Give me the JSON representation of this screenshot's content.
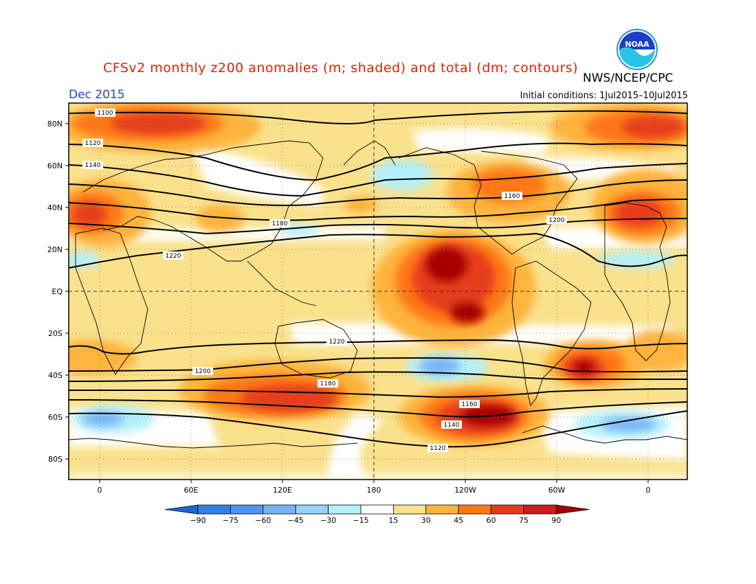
{
  "header": {
    "title": "CFSv2 monthly z200 anomalies (m; shaded) and total (dm; contours)",
    "agency": "NWS/NCEP/CPC",
    "valid_month": "Dec 2015",
    "initial_conditions": "Initial conditions: 1Jul2015–10Jul2015",
    "logo_text": "NOAA"
  },
  "map": {
    "lat_labels": [
      "80N",
      "60N",
      "40N",
      "20N",
      "EQ",
      "20S",
      "40S",
      "60S",
      "80S"
    ],
    "lon_labels": [
      "0",
      "60E",
      "120E",
      "180",
      "120W",
      "60W",
      "0"
    ]
  },
  "legend": {
    "labels": [
      "−90",
      "−75",
      "−60",
      "−45",
      "−30",
      "−15",
      "15",
      "30",
      "45",
      "60",
      "75",
      "90"
    ],
    "colors": [
      "#1e64d2",
      "#3282e6",
      "#5096f0",
      "#78b4f5",
      "#96d2fa",
      "#b4f0fa",
      "#ffffff",
      "#fae18c",
      "#ffb43c",
      "#ff7814",
      "#e63c1e",
      "#c81e1e",
      "#a50000"
    ]
  },
  "colors": {
    "title": "#dd2200",
    "month": "#2244cc"
  },
  "contours": [
    {
      "label": "1100"
    },
    {
      "label": "1120"
    },
    {
      "label": "1140"
    },
    {
      "label": "1160"
    },
    {
      "label": "1180"
    },
    {
      "label": "1200"
    },
    {
      "label": "1220"
    },
    {
      "label": "1220"
    },
    {
      "label": "1200"
    },
    {
      "label": "1180"
    },
    {
      "label": "1160"
    },
    {
      "label": "1140"
    },
    {
      "label": "1120"
    }
  ]
}
